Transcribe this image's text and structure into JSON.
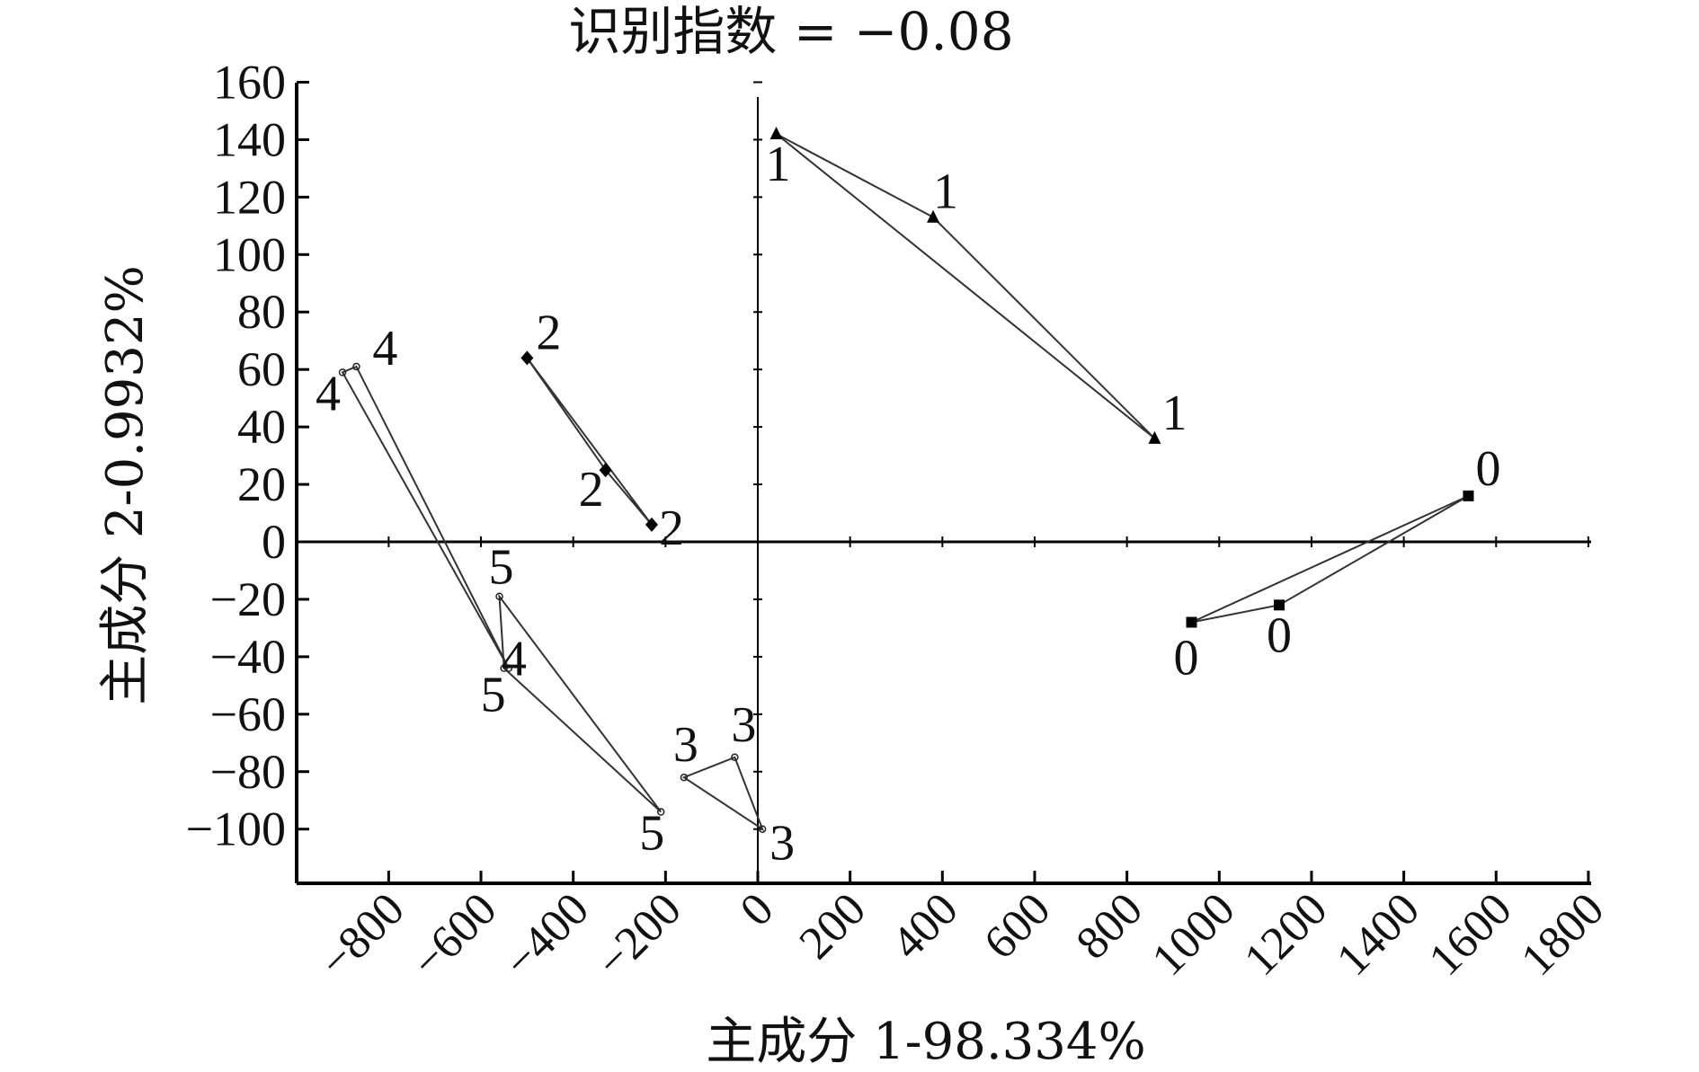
{
  "chart_data": {
    "type": "scatter",
    "title": "识别指数 = −0.08",
    "xlabel": "主成分 1-98.334%",
    "ylabel": "主成分 2-0.9932%",
    "xlim": [
      -1000,
      1800
    ],
    "ylim": [
      -120,
      160
    ],
    "x_ticks": [
      -800,
      -600,
      -400,
      -200,
      0,
      200,
      400,
      600,
      800,
      1000,
      1200,
      1400,
      1600,
      1800
    ],
    "x_tick_labels": [
      "−800",
      "−600",
      "−400",
      "−200",
      "0",
      "200",
      "400",
      "600",
      "800",
      "1000",
      "1200",
      "1400",
      "1600",
      "1800"
    ],
    "y_ticks": [
      160,
      140,
      120,
      100,
      80,
      60,
      40,
      20,
      0,
      -20,
      -40,
      -60,
      -80,
      -100
    ],
    "y_tick_labels": [
      "160",
      "140",
      "120",
      "100",
      "80",
      "60",
      "40",
      "20",
      "0",
      "−20",
      "−40",
      "−60",
      "−80",
      "−100"
    ],
    "grid": false,
    "series": [
      {
        "name": "0",
        "marker": "square",
        "points": [
          {
            "x": 1540,
            "y": 16
          },
          {
            "x": 940,
            "y": -28
          },
          {
            "x": 1130,
            "y": -22
          }
        ]
      },
      {
        "name": "1",
        "marker": "triangle",
        "points": [
          {
            "x": 40,
            "y": 142
          },
          {
            "x": 380,
            "y": 113
          },
          {
            "x": 860,
            "y": 36
          }
        ]
      },
      {
        "name": "2",
        "marker": "diamond",
        "points": [
          {
            "x": -500,
            "y": 64
          },
          {
            "x": -330,
            "y": 25
          },
          {
            "x": -230,
            "y": 6
          }
        ]
      },
      {
        "name": "3",
        "marker": "star",
        "points": [
          {
            "x": 10,
            "y": -100
          },
          {
            "x": -160,
            "y": -82
          },
          {
            "x": -50,
            "y": -75
          }
        ]
      },
      {
        "name": "4",
        "marker": "star",
        "points": [
          {
            "x": -540,
            "y": -44
          },
          {
            "x": -900,
            "y": 59
          },
          {
            "x": -870,
            "y": 61
          }
        ]
      },
      {
        "name": "5",
        "marker": "star",
        "points": [
          {
            "x": -550,
            "y": -44
          },
          {
            "x": -560,
            "y": -19
          },
          {
            "x": -210,
            "y": -94
          }
        ]
      }
    ]
  }
}
